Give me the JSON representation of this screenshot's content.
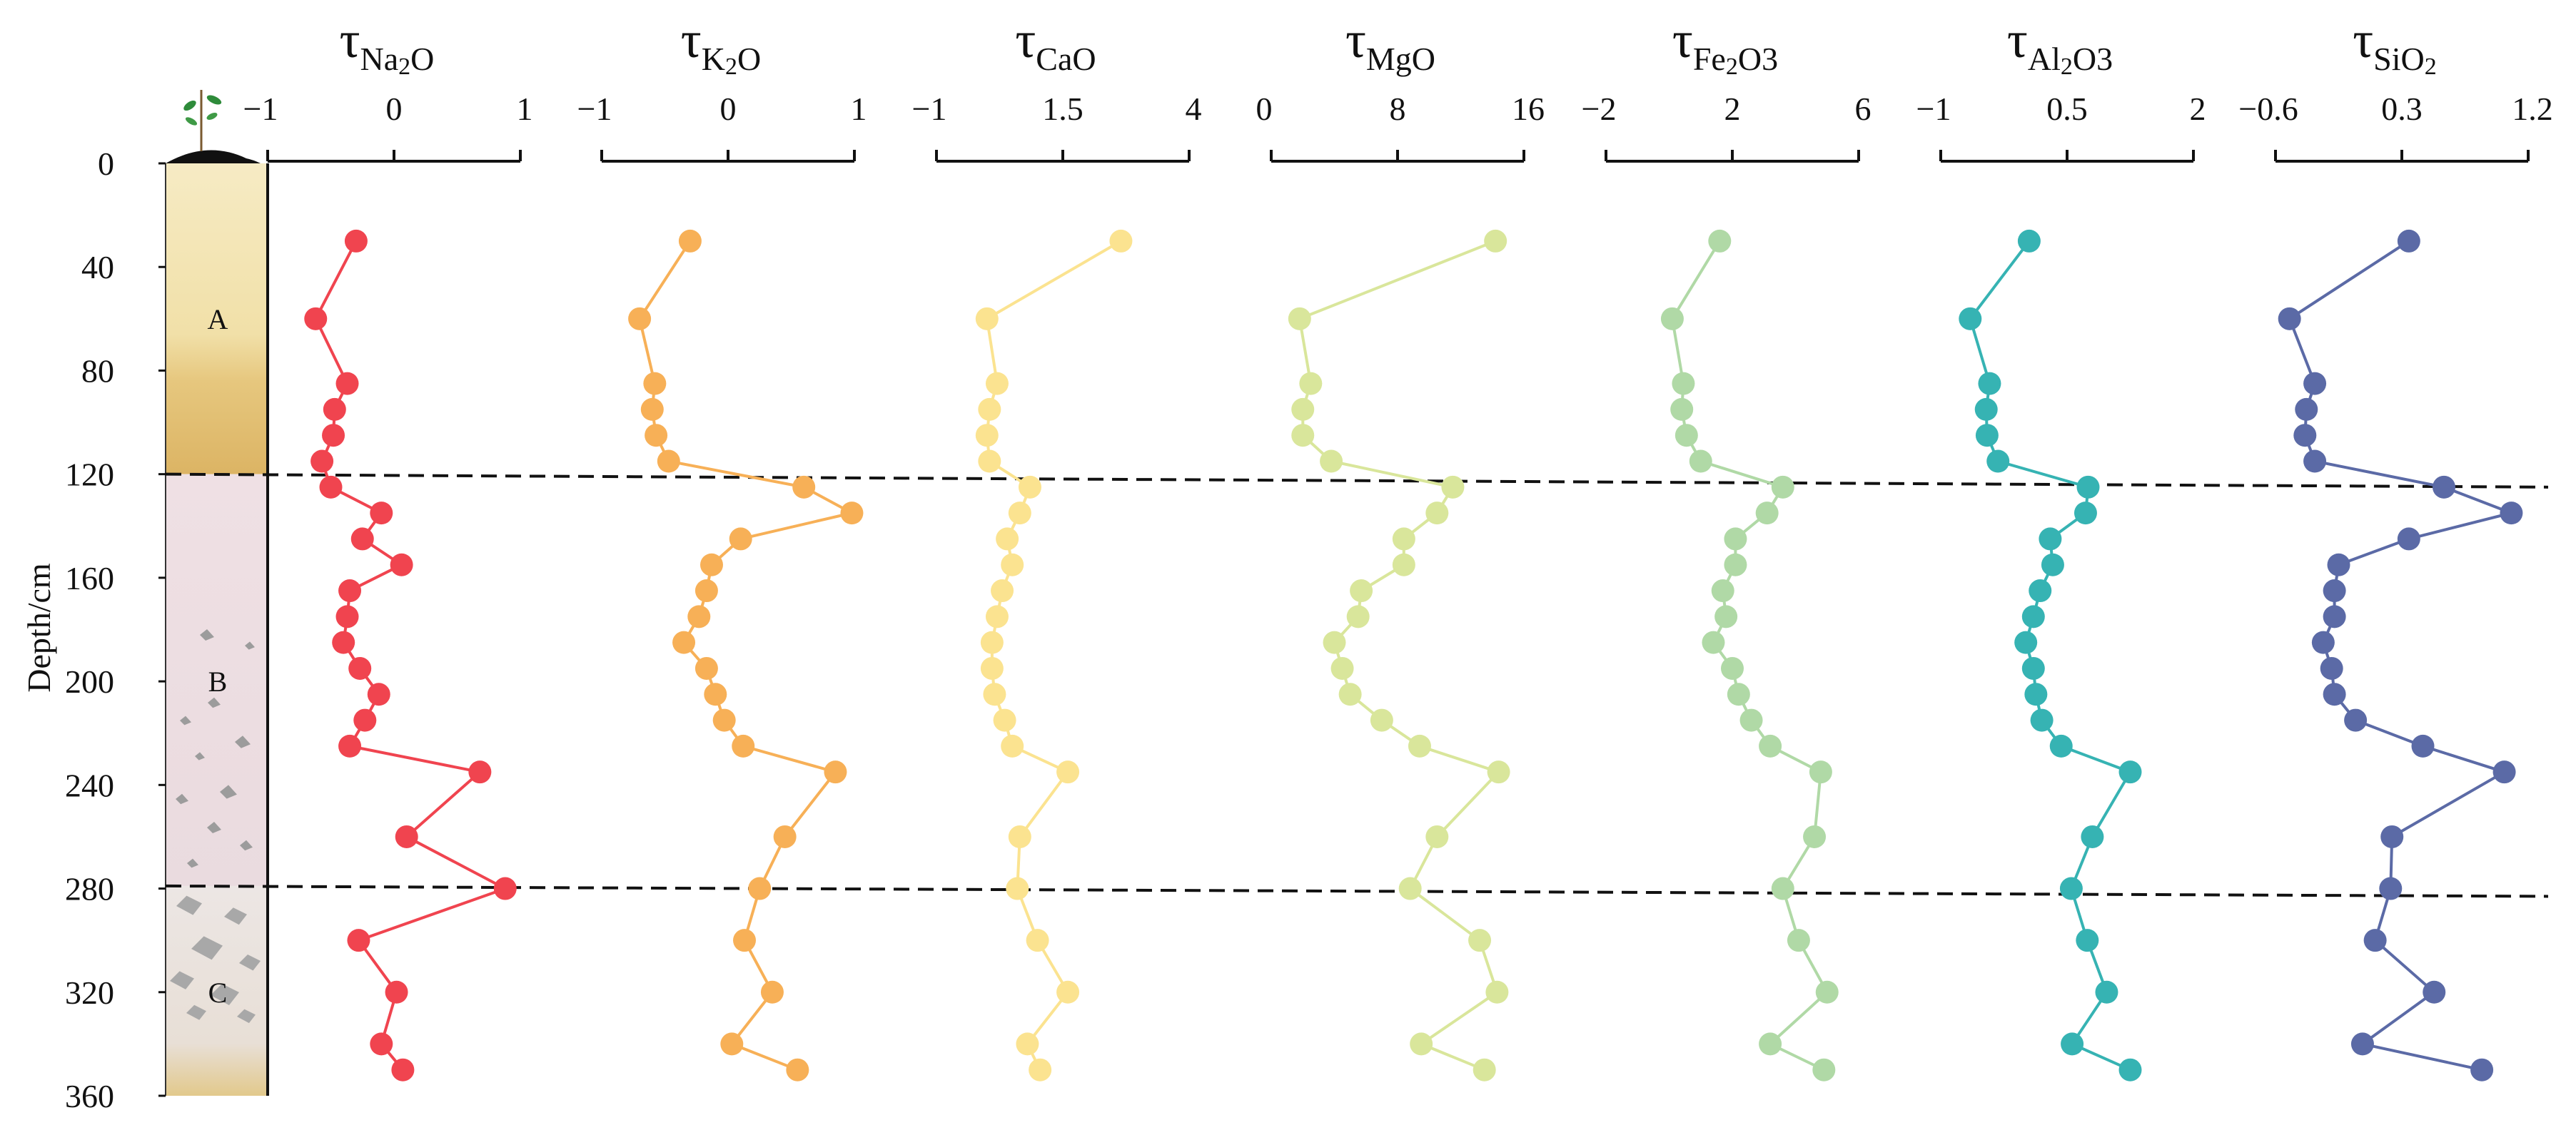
{
  "chart_data": {
    "type": "scatter",
    "ylabel": "Depth/cm",
    "ylim": [
      0,
      360
    ],
    "yticks": [
      "0",
      "40",
      "80",
      "120",
      "160",
      "200",
      "240",
      "280",
      "320",
      "360"
    ],
    "ytick_values": [
      0,
      40,
      80,
      120,
      160,
      200,
      240,
      280,
      320,
      360
    ],
    "depths": [
      30,
      60,
      85,
      95,
      105,
      115,
      125,
      135,
      145,
      155,
      165,
      175,
      185,
      195,
      205,
      215,
      225,
      235,
      260,
      280,
      300,
      320,
      340,
      350
    ],
    "horizons": [
      {
        "label": "A",
        "label_depth": 60
      },
      {
        "label": "B",
        "label_depth": 200
      },
      {
        "label": "C",
        "label_depth": 320
      }
    ],
    "boundaries": [
      {
        "depth_left": 120,
        "depth_right": 125
      },
      {
        "depth_left": 279,
        "depth_right": 283
      }
    ],
    "series": [
      {
        "name": "τNa2O",
        "title_main": "τ",
        "title_sub": "Na",
        "title_sub2": "2",
        "title_sub3": "O",
        "color": "#f0444f",
        "xlim": [
          -1,
          1
        ],
        "xticks": [
          "−1",
          "0",
          "1"
        ],
        "xtick_values": [
          -1,
          0,
          1
        ],
        "values": [
          -0.3,
          -0.62,
          -0.37,
          -0.47,
          -0.48,
          -0.57,
          -0.5,
          -0.1,
          -0.25,
          0.06,
          -0.35,
          -0.37,
          -0.4,
          -0.27,
          -0.12,
          -0.23,
          -0.35,
          0.68,
          0.1,
          0.88,
          -0.28,
          0.02,
          -0.1,
          0.07
        ]
      },
      {
        "name": "τK2O",
        "title_main": "τ",
        "title_sub": "K",
        "title_sub2": "2",
        "title_sub3": "O",
        "color": "#f7b057",
        "xlim": [
          -1,
          1
        ],
        "xticks": [
          "−1",
          "0",
          "1"
        ],
        "xtick_values": [
          -1,
          0,
          1
        ],
        "values": [
          -0.3,
          -0.7,
          -0.58,
          -0.6,
          -0.57,
          -0.47,
          0.6,
          0.98,
          0.1,
          -0.13,
          -0.17,
          -0.23,
          -0.35,
          -0.17,
          -0.1,
          -0.03,
          0.12,
          0.85,
          0.45,
          0.25,
          0.13,
          0.35,
          0.03,
          0.55
        ]
      },
      {
        "name": "τCaO",
        "title_main": "τ",
        "title_sub": "CaO",
        "title_sub2": "",
        "title_sub3": "",
        "color": "#fbe390",
        "xlim": [
          -1,
          4
        ],
        "xticks": [
          "−1",
          "1.5",
          "4"
        ],
        "xtick_values": [
          -1,
          1.5,
          4
        ],
        "values": [
          2.65,
          0.0,
          0.2,
          0.05,
          0.0,
          0.05,
          0.85,
          0.65,
          0.4,
          0.5,
          0.3,
          0.2,
          0.1,
          0.1,
          0.15,
          0.35,
          0.5,
          1.6,
          0.65,
          0.6,
          1.0,
          1.6,
          0.8,
          1.05
        ]
      },
      {
        "name": "τMgO",
        "title_main": "τ",
        "title_sub": "MgO",
        "title_sub2": "",
        "title_sub3": "",
        "color": "#d9e69b",
        "xlim": [
          0,
          16
        ],
        "xticks": [
          "0",
          "8",
          "16"
        ],
        "xtick_values": [
          0,
          8,
          16
        ],
        "values": [
          14.2,
          1.8,
          2.5,
          2.0,
          2.0,
          3.8,
          11.5,
          10.5,
          8.4,
          8.4,
          5.7,
          5.5,
          4.0,
          4.5,
          5.0,
          7.0,
          9.4,
          14.4,
          10.5,
          8.8,
          13.2,
          14.3,
          9.5,
          13.5
        ]
      },
      {
        "name": "τFe2O3",
        "title_main": "τ",
        "title_sub": "Fe",
        "title_sub2": "2",
        "title_sub3": "O3",
        "color": "#b0d9a6",
        "xlim": [
          -2,
          6
        ],
        "xticks": [
          "−2",
          "2",
          "6"
        ],
        "xtick_values": [
          -2,
          2,
          6
        ],
        "values": [
          1.6,
          0.1,
          0.45,
          0.4,
          0.55,
          1.0,
          3.6,
          3.1,
          2.1,
          2.1,
          1.7,
          1.8,
          1.4,
          2.0,
          2.2,
          2.6,
          3.2,
          4.8,
          4.6,
          3.6,
          4.1,
          5.0,
          3.2,
          4.9
        ]
      },
      {
        "name": "τAl2O3",
        "title_main": "τ",
        "title_sub": "Al",
        "title_sub2": "2",
        "title_sub3": "O3",
        "color": "#36b3b3",
        "xlim": [
          -1,
          2
        ],
        "xticks": [
          "−1",
          "0.5",
          "2"
        ],
        "xtick_values": [
          -1,
          0.5,
          2
        ],
        "values": [
          0.05,
          -0.65,
          -0.42,
          -0.46,
          -0.45,
          -0.32,
          0.75,
          0.72,
          0.3,
          0.33,
          0.18,
          0.1,
          0.01,
          0.1,
          0.13,
          0.2,
          0.43,
          1.25,
          0.8,
          0.55,
          0.74,
          0.97,
          0.56,
          1.25
        ]
      },
      {
        "name": "τSiO2",
        "title_main": "τ",
        "title_sub": "SiO",
        "title_sub2": "2",
        "title_sub3": "",
        "color": "#5b6aa6",
        "xlim": [
          -0.6,
          1.2
        ],
        "xticks": [
          "−0.6",
          "0.3",
          "1.2"
        ],
        "xtick_values": [
          -0.6,
          0.3,
          1.2
        ],
        "values": [
          0.35,
          -0.5,
          -0.32,
          -0.38,
          -0.39,
          -0.32,
          0.6,
          1.08,
          0.35,
          -0.15,
          -0.18,
          -0.18,
          -0.26,
          -0.2,
          -0.18,
          -0.03,
          0.45,
          1.03,
          0.23,
          0.22,
          0.11,
          0.53,
          0.02,
          0.87
        ]
      }
    ]
  }
}
